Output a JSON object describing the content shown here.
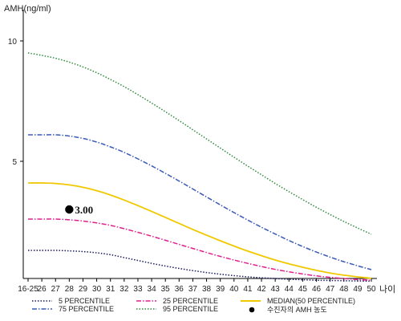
{
  "chart_data": {
    "type": "line",
    "ylabel": "AMH(ng/ml)",
    "xlabel": "나이",
    "yticks": [
      10,
      5
    ],
    "ylim": [
      0,
      11
    ],
    "categories": [
      "16-25",
      "26",
      "27",
      "28",
      "29",
      "30",
      "31",
      "32",
      "33",
      "34",
      "35",
      "36",
      "37",
      "38",
      "39",
      "40",
      "41",
      "42",
      "43",
      "44",
      "45",
      "46",
      "47",
      "48",
      "49",
      "50"
    ],
    "series": [
      {
        "name": "5 PERCENTILE",
        "color": "#1a1a60",
        "dash": "dotted",
        "values": [
          1.3,
          1.3,
          1.3,
          1.28,
          1.25,
          1.2,
          1.12,
          1.0,
          0.88,
          0.76,
          0.65,
          0.55,
          0.46,
          0.38,
          0.31,
          0.25,
          0.2,
          0.16,
          0.13,
          0.1,
          0.08,
          0.06,
          0.05,
          0.04,
          0.03,
          0.02
        ]
      },
      {
        "name": "25 PERCENTILE",
        "color": "#e0208c",
        "dash": "dashdot",
        "values": [
          2.6,
          2.6,
          2.6,
          2.57,
          2.52,
          2.44,
          2.34,
          2.2,
          2.05,
          1.89,
          1.72,
          1.55,
          1.38,
          1.21,
          1.05,
          0.9,
          0.76,
          0.63,
          0.51,
          0.41,
          0.32,
          0.24,
          0.18,
          0.13,
          0.09,
          0.06
        ]
      },
      {
        "name": "MEDIAN(50 PERCENTILE)",
        "color": "#f0c800",
        "dash": "solid",
        "values": [
          4.1,
          4.1,
          4.08,
          4.02,
          3.92,
          3.78,
          3.6,
          3.39,
          3.16,
          2.92,
          2.67,
          2.42,
          2.17,
          1.93,
          1.7,
          1.48,
          1.27,
          1.08,
          0.9,
          0.74,
          0.6,
          0.47,
          0.36,
          0.27,
          0.2,
          0.14
        ]
      },
      {
        "name": "75 PERCENTILE",
        "color": "#3a5ab8",
        "dash": "dashdot",
        "values": [
          6.1,
          6.1,
          6.1,
          6.05,
          5.95,
          5.8,
          5.6,
          5.37,
          5.1,
          4.81,
          4.5,
          4.18,
          3.85,
          3.52,
          3.19,
          2.87,
          2.56,
          2.26,
          1.98,
          1.71,
          1.46,
          1.23,
          1.02,
          0.83,
          0.66,
          0.5
        ]
      },
      {
        "name": "95 PERCENTILE",
        "color": "#2e8b3a",
        "dash": "dotted",
        "values": [
          9.5,
          9.4,
          9.28,
          9.12,
          8.92,
          8.68,
          8.4,
          8.1,
          7.77,
          7.42,
          7.06,
          6.69,
          6.31,
          5.93,
          5.55,
          5.17,
          4.8,
          4.44,
          4.08,
          3.74,
          3.41,
          3.09,
          2.79,
          2.5,
          2.23,
          1.97
        ]
      }
    ],
    "marker": {
      "name": "수진자의 AMH 농도",
      "category": "28",
      "value": 3.0,
      "label": "3.00",
      "color": "#000000"
    },
    "legend_position": "bottom",
    "grid": false
  }
}
